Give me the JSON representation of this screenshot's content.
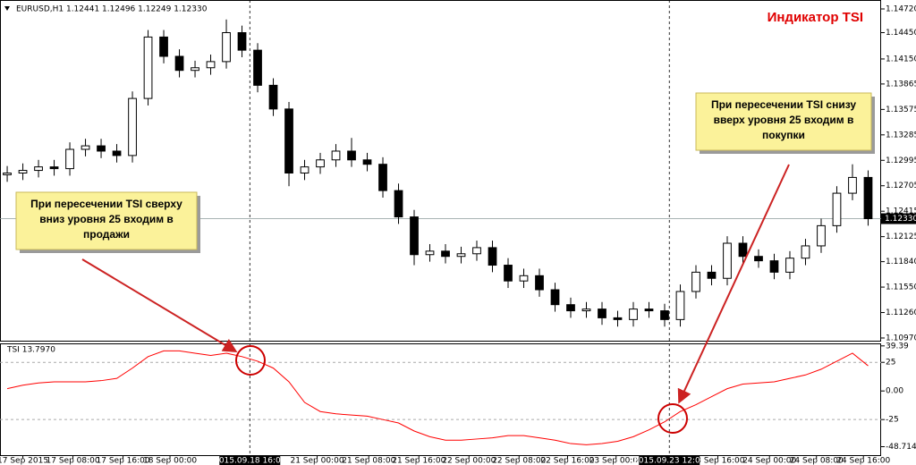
{
  "chart_data": [
    {
      "type": "candlestick",
      "symbol_info": "EURUSD,H1  1.12441 1.12496 1.12249 1.12330",
      "title": "Индикатор TSI",
      "opens": [
        1.1283,
        1.1285,
        1.1288,
        1.1292,
        1.129,
        1.1312,
        1.1316,
        1.131,
        1.1305,
        1.137,
        1.144,
        1.1418,
        1.1402,
        1.1405,
        1.1412,
        1.1445,
        1.1425,
        1.1385,
        1.1358,
        1.1285,
        1.1292,
        1.13,
        1.131,
        1.13,
        1.1295,
        1.1265,
        1.1235,
        1.1192,
        1.1196,
        1.119,
        1.1193,
        1.12,
        1.118,
        1.1162,
        1.1168,
        1.1152,
        1.1135,
        1.1128,
        1.113,
        1.112,
        1.1118,
        1.113,
        1.1128,
        1.1118,
        1.115,
        1.1172,
        1.1165,
        1.1205,
        1.119,
        1.1185,
        1.1172,
        1.1188,
        1.1202,
        1.1225,
        1.1262,
        1.128
      ],
      "highs": [
        1.1293,
        1.1296,
        1.13,
        1.13,
        1.132,
        1.1324,
        1.1324,
        1.1318,
        1.1378,
        1.1448,
        1.1448,
        1.1426,
        1.1413,
        1.142,
        1.146,
        1.1453,
        1.1433,
        1.1393,
        1.1366,
        1.13,
        1.1308,
        1.1318,
        1.1325,
        1.1308,
        1.1303,
        1.1273,
        1.1243,
        1.1204,
        1.1204,
        1.1201,
        1.1208,
        1.1208,
        1.1188,
        1.1176,
        1.1176,
        1.116,
        1.1143,
        1.1138,
        1.1138,
        1.1128,
        1.1138,
        1.1138,
        1.1136,
        1.1158,
        1.118,
        1.118,
        1.1213,
        1.1213,
        1.1198,
        1.1193,
        1.1196,
        1.121,
        1.1233,
        1.127,
        1.1295,
        1.1288
      ],
      "lows": [
        1.1275,
        1.1277,
        1.128,
        1.1282,
        1.1282,
        1.1304,
        1.1302,
        1.1297,
        1.1297,
        1.1362,
        1.141,
        1.1394,
        1.1394,
        1.1397,
        1.1404,
        1.1417,
        1.1377,
        1.135,
        1.127,
        1.1277,
        1.1284,
        1.1292,
        1.1292,
        1.1287,
        1.1257,
        1.1227,
        1.118,
        1.1184,
        1.1182,
        1.1182,
        1.1185,
        1.1172,
        1.1154,
        1.1154,
        1.1144,
        1.1127,
        1.112,
        1.112,
        1.1112,
        1.111,
        1.111,
        1.112,
        1.111,
        1.111,
        1.1142,
        1.1157,
        1.1157,
        1.1182,
        1.1177,
        1.1164,
        1.1164,
        1.118,
        1.1194,
        1.1217,
        1.1254,
        1.1225
      ],
      "closes": [
        1.1285,
        1.1288,
        1.1292,
        1.129,
        1.1312,
        1.1316,
        1.131,
        1.1305,
        1.137,
        1.144,
        1.1418,
        1.1402,
        1.1405,
        1.1412,
        1.1445,
        1.1425,
        1.1385,
        1.1358,
        1.1285,
        1.1292,
        1.13,
        1.131,
        1.13,
        1.1295,
        1.1265,
        1.1235,
        1.1192,
        1.1196,
        1.119,
        1.1193,
        1.12,
        1.118,
        1.1162,
        1.1168,
        1.1152,
        1.1135,
        1.1128,
        1.113,
        1.112,
        1.1118,
        1.113,
        1.1128,
        1.1118,
        1.115,
        1.1172,
        1.1165,
        1.1205,
        1.119,
        1.1185,
        1.1172,
        1.1188,
        1.1202,
        1.1225,
        1.1262,
        1.128,
        1.1233
      ],
      "ylim": [
        1.10929,
        1.14822
      ],
      "yticks": [
        {
          "value": 1.1472,
          "label": "1.14720"
        },
        {
          "value": 1.1445,
          "label": "1.14450"
        },
        {
          "value": 1.1415,
          "label": "1.14150"
        },
        {
          "value": 1.13865,
          "label": "1.13865"
        },
        {
          "value": 1.13575,
          "label": "1.13575"
        },
        {
          "value": 1.13285,
          "label": "1.13285"
        },
        {
          "value": 1.12995,
          "label": "1.12995"
        },
        {
          "value": 1.12705,
          "label": "1.12705"
        },
        {
          "value": 1.12415,
          "label": "1.12415"
        },
        {
          "value": 1.12125,
          "label": "1.12125"
        },
        {
          "value": 1.1184,
          "label": "1.11840"
        },
        {
          "value": 1.1155,
          "label": "1.11550"
        },
        {
          "value": 1.1126,
          "label": "1.11260"
        },
        {
          "value": 1.1097,
          "label": "1.10970"
        }
      ],
      "last_price": {
        "value": 1.1233,
        "label": "1.12330"
      },
      "xlim": [
        -0.46,
        55.83
      ],
      "xticks": [
        {
          "value": 1,
          "label": "17 Sep 2015"
        },
        {
          "value": 4.2,
          "label": "17 Sep 08:00"
        },
        {
          "value": 7.4,
          "label": "17 Sep 16:00"
        },
        {
          "value": 10.4,
          "label": "18 Sep 00:00"
        },
        {
          "value": 19.8,
          "label": "21 Sep 00:00"
        },
        {
          "value": 23.1,
          "label": "21 Sep 08:00"
        },
        {
          "value": 26.3,
          "label": "21 Sep 16:00"
        },
        {
          "value": 29.5,
          "label": "22 Sep 00:00"
        },
        {
          "value": 32.7,
          "label": "22 Sep 08:00"
        },
        {
          "value": 35.8,
          "label": "22 Sep 16:00"
        },
        {
          "value": 38.9,
          "label": "23 Sep 00:00"
        },
        {
          "value": 45.4,
          "label": "23 Sep 16:00"
        },
        {
          "value": 48.7,
          "label": "24 Sep 00:00"
        },
        {
          "value": 51.7,
          "label": "24 Sep 08:00"
        },
        {
          "value": 54.7,
          "label": "24 Sep 16:00"
        }
      ],
      "crosshairs": [
        {
          "value": 15.5,
          "label": "2015.09.18 16:00"
        },
        {
          "value": 42.3,
          "label": "2015.09.23 12:00"
        }
      ],
      "annotations": [
        {
          "lines": [
            "При пересечении TSI сверху",
            "вниз уровня 25 входим в",
            "продажи"
          ]
        },
        {
          "lines": [
            "При пересечении TSI снизу",
            "вверх уровня 25 входим в",
            "покупки"
          ]
        }
      ]
    },
    {
      "type": "line",
      "title": "TSI 13.7970",
      "color": "#ff0000",
      "values": [
        2,
        5,
        7,
        8,
        8,
        8,
        9,
        11,
        20,
        30,
        35,
        35,
        33,
        31,
        33,
        30,
        26,
        20,
        8,
        -10,
        -18,
        -20,
        -21,
        -22,
        -25,
        -28,
        -35,
        -40,
        -43,
        -43,
        -42,
        -41,
        -39,
        -39,
        -41,
        -43,
        -46,
        -47,
        -46,
        -44,
        -40,
        -34,
        -27,
        -18,
        -12,
        -5,
        2,
        6,
        7,
        8,
        11,
        14,
        19,
        26,
        33,
        22
      ],
      "ylim": [
        -56.9,
        40.8
      ],
      "yticks": [
        39.39,
        25,
        {
          "value": 0,
          "label": "0.00"
        },
        -25,
        -48.7141
      ],
      "levels": [
        25,
        -25
      ]
    }
  ]
}
